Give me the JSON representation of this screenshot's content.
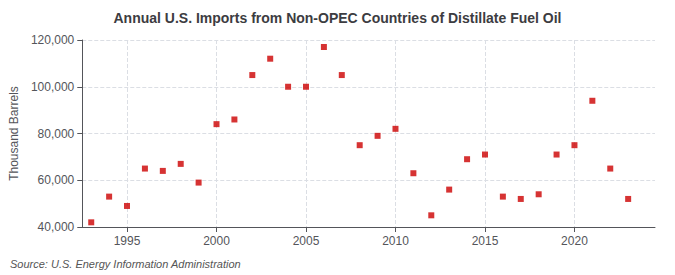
{
  "chart_data": {
    "type": "scatter",
    "title": "Annual U.S. Imports from Non-OPEC Countries of Distillate Fuel Oil",
    "ylabel": "Thousand Barrels",
    "annotations": [
      "Source: U.S. Energy Information Administration"
    ],
    "x": [
      1993,
      1994,
      1995,
      1996,
      1997,
      1998,
      1999,
      2000,
      2001,
      2002,
      2003,
      2004,
      2005,
      2006,
      2007,
      2008,
      2009,
      2010,
      2011,
      2012,
      2013,
      2014,
      2015,
      2016,
      2017,
      2018,
      2019,
      2020,
      2021,
      2022,
      2023
    ],
    "values": [
      42000,
      53000,
      49000,
      65000,
      64000,
      67000,
      59000,
      84000,
      86000,
      105000,
      112000,
      100000,
      100000,
      117000,
      105000,
      75000,
      79000,
      82000,
      63000,
      45000,
      56000,
      69000,
      71000,
      53000,
      52000,
      54000,
      71000,
      75000,
      94000,
      65000,
      52000
    ],
    "color": "#cc0000",
    "marker": "square",
    "xlim": [
      1992.5,
      2024.5
    ],
    "xticks": [
      1995,
      2000,
      2005,
      2010,
      2015,
      2020
    ],
    "ylim": [
      40000,
      120000
    ],
    "yticks": [
      {
        "value": 40000,
        "label": "40,000"
      },
      {
        "value": 60000,
        "label": "60,000"
      },
      {
        "value": 80000,
        "label": "80,000"
      },
      {
        "value": 100000,
        "label": "100,000"
      },
      {
        "value": 120000,
        "label": "120,000"
      }
    ],
    "grid": true
  }
}
